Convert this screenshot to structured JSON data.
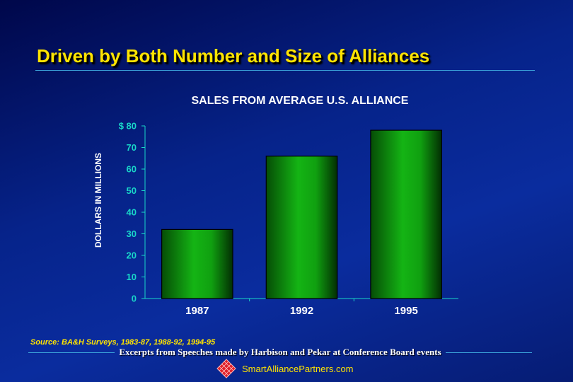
{
  "slide": {
    "title": "Driven by Both Number and Size of Alliances",
    "source": "Source: BA&H Surveys, 1983-87, 1988-92, 1994-95",
    "footer_text": "Excerpts from Speeches made by Harbison and Pekar at Conference Board events",
    "brand_text": "SmartAlliancePartners.com",
    "colors": {
      "title": "#ffe400",
      "bar": "#12a012",
      "axis_ticks": "#19d6c8",
      "background": "#0a2c9e"
    }
  },
  "chart_data": {
    "type": "bar",
    "title": "SALES FROM AVERAGE U.S. ALLIANCE",
    "ylabel": "DOLLARS IN MILLIONS",
    "xlabel": "",
    "categories": [
      "1987",
      "1992",
      "1995"
    ],
    "values": [
      32,
      66,
      78
    ],
    "ylim": [
      0,
      80
    ],
    "yticks": [
      {
        "value": 0,
        "label": "0"
      },
      {
        "value": 10,
        "label": "10"
      },
      {
        "value": 20,
        "label": "20"
      },
      {
        "value": 30,
        "label": "30"
      },
      {
        "value": 40,
        "label": "40"
      },
      {
        "value": 50,
        "label": "50"
      },
      {
        "value": 60,
        "label": "60"
      },
      {
        "value": 70,
        "label": "70"
      },
      {
        "value": 80,
        "label": "$ 80"
      }
    ],
    "grid": false,
    "legend": "none"
  }
}
